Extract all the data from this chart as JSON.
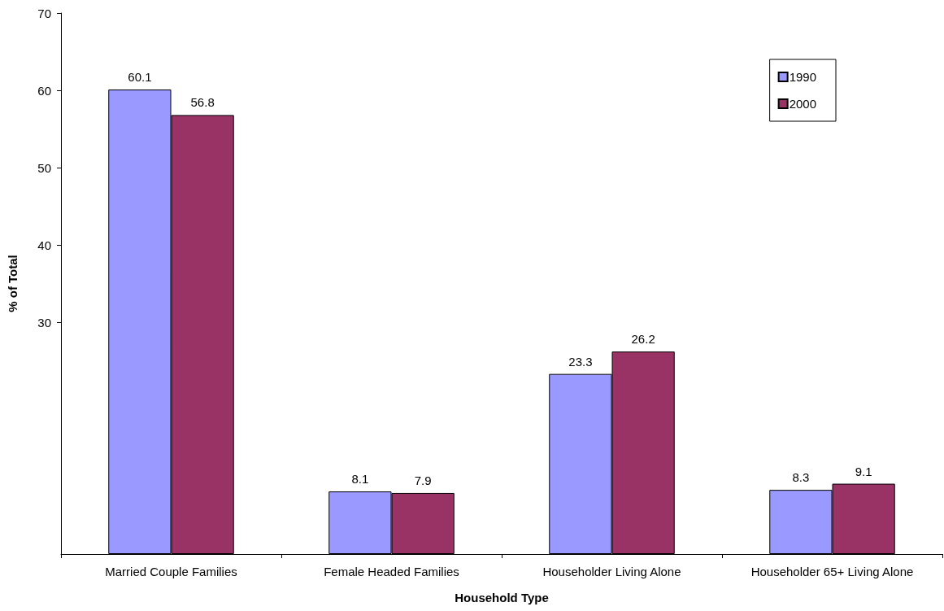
{
  "chart_data": {
    "type": "bar",
    "xlabel": "Household Type",
    "ylabel": "% of Total",
    "categories": [
      "Married Couple Families",
      "Female Headed Families",
      "Householder Living Alone",
      "Householder 65+ Living Alone"
    ],
    "series": [
      {
        "name": "1990",
        "color": "#9999ff",
        "values": [
          60.1,
          8.1,
          23.3,
          8.3
        ]
      },
      {
        "name": "2000",
        "color": "#993366",
        "values": [
          56.8,
          7.9,
          26.2,
          9.1
        ]
      }
    ],
    "ylim": [
      0,
      70
    ],
    "yticks": [
      30,
      40,
      50,
      60,
      70
    ],
    "grid": false,
    "legend": "top right",
    "data_labels": true
  }
}
